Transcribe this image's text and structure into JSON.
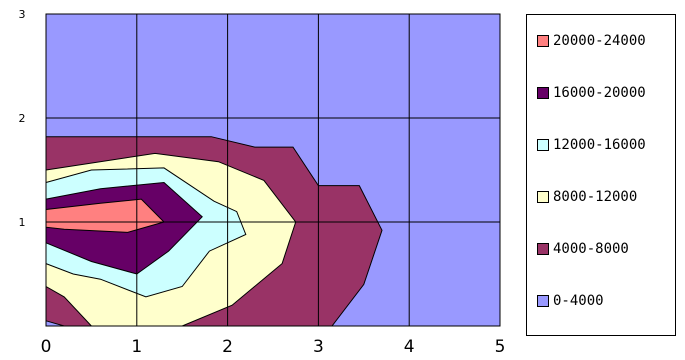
{
  "chart_data": {
    "type": "contour",
    "x_ticks": [
      "0",
      "1",
      "2",
      "3",
      "4",
      "5"
    ],
    "y_ticks": [
      "1",
      "2",
      "3"
    ],
    "xlim": [
      0,
      5
    ],
    "ylim": [
      0,
      3
    ],
    "grid": true,
    "legend_position": "right",
    "bands": [
      {
        "label": "20000-24000",
        "color": "#ff8080",
        "polygon": [
          [
            0,
            1.12
          ],
          [
            0.6,
            1.18
          ],
          [
            1.05,
            1.22
          ],
          [
            1.3,
            1.0
          ],
          [
            0.9,
            0.9
          ],
          [
            0.2,
            0.93
          ],
          [
            0,
            0.95
          ]
        ]
      },
      {
        "label": "16000-20000",
        "color": "#660066",
        "polygon": [
          [
            0,
            1.22
          ],
          [
            0.6,
            1.32
          ],
          [
            1.3,
            1.38
          ],
          [
            1.72,
            1.05
          ],
          [
            1.35,
            0.72
          ],
          [
            1.0,
            0.5
          ],
          [
            0.5,
            0.62
          ],
          [
            0,
            0.8
          ]
        ]
      },
      {
        "label": "12000-16000",
        "color": "#ccffff",
        "polygon": [
          [
            0,
            1.38
          ],
          [
            0.5,
            1.5
          ],
          [
            1.3,
            1.52
          ],
          [
            1.85,
            1.2
          ],
          [
            2.1,
            1.1
          ],
          [
            2.2,
            0.88
          ],
          [
            1.8,
            0.72
          ],
          [
            1.5,
            0.38
          ],
          [
            1.1,
            0.28
          ],
          [
            0.6,
            0.45
          ],
          [
            0.3,
            0.5
          ],
          [
            0,
            0.6
          ]
        ]
      },
      {
        "label": "8000-12000",
        "color": "#ffffcc",
        "polygon": [
          [
            0,
            1.5
          ],
          [
            1.2,
            1.66
          ],
          [
            1.9,
            1.58
          ],
          [
            2.4,
            1.4
          ],
          [
            2.75,
            1.0
          ],
          [
            2.6,
            0.6
          ],
          [
            2.05,
            0.2
          ],
          [
            1.5,
            0
          ],
          [
            0.5,
            0
          ],
          [
            0.2,
            0.28
          ],
          [
            0,
            0.38
          ]
        ]
      },
      {
        "label": "4000-8000",
        "color": "#993366",
        "polygon": [
          [
            0,
            1.82
          ],
          [
            1.82,
            1.82
          ],
          [
            2.3,
            1.72
          ],
          [
            2.72,
            1.72
          ],
          [
            3.0,
            1.35
          ],
          [
            3.45,
            1.35
          ],
          [
            3.7,
            0.92
          ],
          [
            3.5,
            0.4
          ],
          [
            3.15,
            0
          ],
          [
            0.2,
            0
          ],
          [
            0,
            0.05
          ]
        ]
      },
      {
        "label": "0-4000",
        "color": "#9999ff",
        "polygon": [
          [
            0,
            0
          ],
          [
            5,
            0
          ],
          [
            5,
            3
          ],
          [
            0,
            3
          ]
        ]
      }
    ]
  }
}
